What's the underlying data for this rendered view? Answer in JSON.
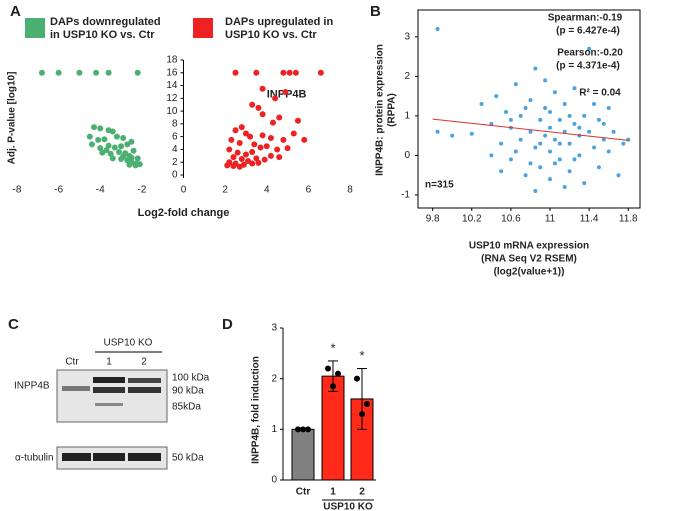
{
  "panels": [
    "A",
    "B",
    "C",
    "D"
  ],
  "chart_data": [
    {
      "type": "volcano",
      "x_label": "Log2-fold change",
      "y_label": "Adj. P-value [log10]",
      "annotation": "INPP4B",
      "xlim": [
        -8,
        8
      ],
      "xticks": [
        -8,
        -6,
        -4,
        -2,
        0,
        2,
        4,
        6,
        8
      ],
      "ylim": [
        0,
        18
      ],
      "yticks": [
        0,
        2,
        4,
        6,
        8,
        10,
        12,
        14,
        16,
        18
      ],
      "legend": "top",
      "series": [
        {
          "name": "DAPs downregulated in USP10 KO vs. Ctr",
          "color": "#4caf72",
          "x": [
            -6.8,
            -6,
            -5,
            -4.2,
            -3.6,
            -2.2,
            -4.3,
            -4,
            -3.6,
            -3.4,
            -4.5,
            -4.1,
            -3.8,
            -3.2,
            -2.9,
            -4.4,
            -4,
            -3.6,
            -3.3,
            -3,
            -2.7,
            -2.5,
            -3.9,
            -3.5,
            -3.1,
            -2.8,
            -2.6,
            -3.4,
            -3,
            -2.7,
            -2.5,
            -2.3,
            -2.6,
            -2.2,
            -2.4,
            -2.3,
            -2.9,
            -3.7,
            -2.1,
            -2.5
          ],
          "values": [
            16,
            16,
            16,
            16,
            16,
            16,
            7.5,
            7.3,
            7,
            6.8,
            6,
            5.5,
            5.6,
            6,
            5.8,
            4.8,
            4.2,
            4.6,
            4.3,
            4.5,
            4.8,
            5.2,
            3.5,
            3.3,
            3.6,
            3.4,
            3,
            2.6,
            2.5,
            2.3,
            2,
            1.8,
            1.6,
            2.6,
            3.8,
            1.5,
            2.9,
            3.9,
            1.7,
            2.7
          ]
        },
        {
          "name": "DAPs upregulated in USP10 KO vs. Ctr",
          "color": "#ee2222",
          "x": [
            2.5,
            3.5,
            4.8,
            5.1,
            5.4,
            6.6,
            4.9,
            4.4,
            3.8,
            3.6,
            3.3,
            3.8,
            4.6,
            4.3,
            5.5,
            5.3,
            2.8,
            2.5,
            3,
            3.2,
            3.8,
            4.2,
            4.8,
            2.3,
            2.7,
            3.4,
            3.7,
            4,
            4.5,
            5,
            2.2,
            2.6,
            3,
            3.3,
            2.4,
            2.8,
            3.1,
            3.5,
            3.9,
            4.2,
            2.2,
            2.5,
            2.9,
            3.3,
            2.1,
            2.4,
            2.7,
            3.6,
            4.6,
            5.8
          ],
          "values": [
            16,
            16,
            16,
            16,
            16,
            16,
            13,
            12,
            13.5,
            10.5,
            11,
            9.5,
            9,
            8.2,
            8.5,
            6.5,
            7.5,
            7,
            6.5,
            6,
            6.2,
            5.8,
            5.5,
            5.5,
            5,
            4.8,
            4.3,
            4.5,
            4,
            4.2,
            4,
            3.5,
            3.2,
            3.6,
            2.8,
            2.5,
            2.2,
            2.6,
            2.4,
            3,
            2,
            1.8,
            1.6,
            1.8,
            1.5,
            1.4,
            1.3,
            1.9,
            2.8,
            5.5
          ]
        }
      ]
    },
    {
      "type": "scatter",
      "x_label": [
        "USP10 mRNA expression",
        "(RNA Seq V2 RSEM)",
        "(log2(value+1))"
      ],
      "y_label": [
        "INPP4B: protein expression",
        "(RPPA)"
      ],
      "annotations": [
        "Spearman:-0.19",
        "(p = 6.427e-4)",
        "Pearson:-0.20",
        "(p = 4.371e-4)",
        "R² = 0.04",
        "n=315"
      ],
      "xlim": [
        9.65,
        11.92
      ],
      "xticks": [
        9.8,
        10.2,
        10.6,
        11,
        11.4,
        11.8
      ],
      "ylim": [
        -1.33,
        3.68
      ],
      "yticks": [
        -1,
        0,
        1,
        2,
        3
      ],
      "trendline": {
        "x": [
          9.8,
          11.8
        ],
        "values": [
          0.92,
          0.38
        ],
        "color": "#d9302a"
      },
      "series": [
        {
          "color": "#4ba3e0",
          "x": [
            9.85,
            9.85,
            10,
            10.2,
            10.3,
            10.4,
            10.45,
            10.5,
            10.55,
            10.6,
            10.6,
            10.65,
            10.7,
            10.7,
            10.75,
            10.8,
            10.8,
            10.85,
            10.85,
            10.9,
            10.9,
            10.95,
            10.95,
            11,
            11,
            11,
            11.05,
            11.05,
            11.1,
            11.1,
            11.15,
            11.15,
            11.2,
            11.2,
            11.25,
            11.25,
            11.3,
            11.3,
            11.35,
            11.35,
            11.4,
            11.4,
            11.45,
            11.5,
            11.5,
            11.55,
            11.6,
            11.6,
            11.65,
            11.7,
            11.75,
            11.8,
            10.5,
            10.65,
            10.75,
            10.9,
            11,
            11.1,
            11.2,
            11.3,
            10.8,
            11.05,
            10.6,
            11.45,
            10.4,
            11.25,
            10.95,
            10.85,
            11.15,
            11.55
          ],
          "values": [
            3.2,
            0.6,
            0.5,
            0.55,
            1.3,
            0.8,
            1.5,
            0.3,
            1.1,
            0.7,
            -0.1,
            1.8,
            0.4,
            1,
            -0.5,
            0.6,
            1.4,
            0.2,
            2.2,
            0.9,
            -0.3,
            0.5,
            1.2,
            0.7,
            0.1,
            -0.6,
            1.6,
            0.4,
            0.9,
            -0.1,
            0.6,
            1.3,
            0.3,
            -0.4,
            0.8,
            1.7,
            0.5,
            0,
            1,
            -0.7,
            0.6,
            2.7,
            0.2,
            0.9,
            -0.3,
            0.4,
            1.2,
            0.1,
            0.6,
            -0.5,
            0.3,
            0.4,
            -0.4,
            0.1,
            1.2,
            0.3,
            1.1,
            0.3,
            1,
            0.7,
            -0.2,
            -0.2,
            0.9,
            1.3,
            0,
            -0.1,
            1.9,
            -0.9,
            -0.8,
            0.8
          ]
        }
      ]
    },
    {
      "type": "bar",
      "y_label": "INPP4B, fold induction",
      "categories": [
        "Ctr",
        "1",
        "2"
      ],
      "group_label": "USP10 KO",
      "ylim": [
        0,
        3
      ],
      "yticks": [
        0,
        1,
        2,
        3
      ],
      "series": [
        {
          "values": [
            1,
            2.05,
            1.6
          ],
          "errors": [
            null,
            0.3,
            0.6
          ],
          "colors": [
            "#808080",
            "#ff2a1a",
            "#ff2a1a"
          ],
          "points": [
            [
              1,
              1,
              1
            ],
            [
              2.2,
              1.85,
              2.1
            ],
            [
              2.0,
              1.3,
              1.5
            ]
          ],
          "value_annotations": [
            null,
            "*",
            "*"
          ]
        }
      ]
    }
  ],
  "blot": {
    "group": "USP10 KO",
    "lanes": [
      "Ctr",
      "1",
      "2"
    ],
    "rows": [
      {
        "label": "INPP4B",
        "markers": [
          "100 kDa",
          "90 kDa",
          "85kDa"
        ]
      },
      {
        "label": "α-tubulin",
        "markers": [
          "50 kDa"
        ]
      }
    ]
  }
}
